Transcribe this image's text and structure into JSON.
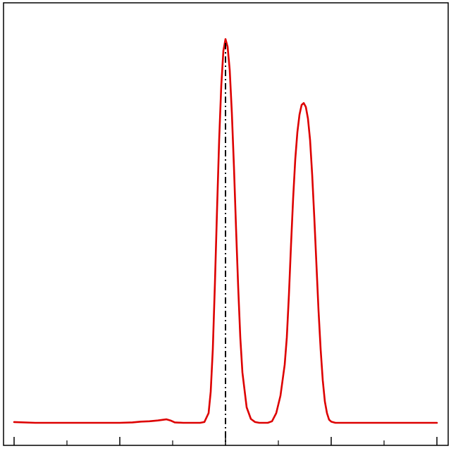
{
  "chart_data": {
    "type": "line",
    "title": "",
    "xlabel": "",
    "ylabel": "",
    "xlim": [
      0,
      100
    ],
    "ylim": [
      0,
      100
    ],
    "grid": false,
    "legend": "none",
    "x_major_ticks": [
      0,
      25,
      50,
      75,
      100
    ],
    "x_minor_ticks": [
      12.5,
      37.5,
      62.5,
      87.5
    ],
    "series": [
      {
        "color": "#dd0000",
        "style": "solid",
        "x": [
          0,
          5,
          10,
          15,
          20,
          25,
          28,
          30,
          32,
          34,
          36,
          37,
          38,
          40,
          42,
          44,
          45,
          46,
          46.5,
          47,
          47.5,
          48,
          48.5,
          49,
          49.5,
          50,
          50.5,
          51,
          51.5,
          52,
          52.5,
          53,
          53.5,
          54,
          55,
          56,
          57,
          58,
          59,
          60,
          61,
          62,
          63,
          64,
          64.5,
          65,
          65.5,
          66,
          66.5,
          67,
          67.5,
          68,
          68.5,
          69,
          69.5,
          70,
          70.5,
          71,
          71.5,
          72,
          72.5,
          73,
          73.5,
          74,
          74.5,
          75,
          76,
          77,
          78,
          80,
          85,
          90,
          95,
          100
        ],
        "y": [
          0.2,
          0.0,
          0.0,
          0.0,
          0.0,
          0.0,
          0.1,
          0.3,
          0.4,
          0.6,
          0.9,
          0.6,
          0.1,
          0.0,
          0.0,
          0.0,
          0.2,
          2.5,
          8.0,
          19.0,
          36.0,
          55.0,
          73.0,
          87.0,
          96.0,
          99.0,
          97.0,
          91.0,
          80.0,
          66.0,
          50.0,
          35.0,
          22.0,
          13.0,
          4.0,
          1.0,
          0.2,
          0.0,
          0.0,
          0.0,
          0.4,
          2.5,
          7.0,
          15.0,
          22.0,
          33.0,
          46.0,
          58.0,
          68.0,
          75.0,
          79.5,
          82.0,
          82.5,
          81.5,
          78.5,
          73.0,
          64.0,
          53.0,
          41.0,
          29.0,
          19.0,
          11.0,
          5.5,
          2.5,
          0.8,
          0.3,
          0.0,
          0.0,
          0.0,
          0.0,
          0.0,
          0.0,
          0.0,
          0.0
        ]
      }
    ],
    "reference_lines": [
      {
        "orientation": "vertical",
        "x": 50,
        "color": "#000000",
        "style": "dash-dot"
      }
    ]
  }
}
